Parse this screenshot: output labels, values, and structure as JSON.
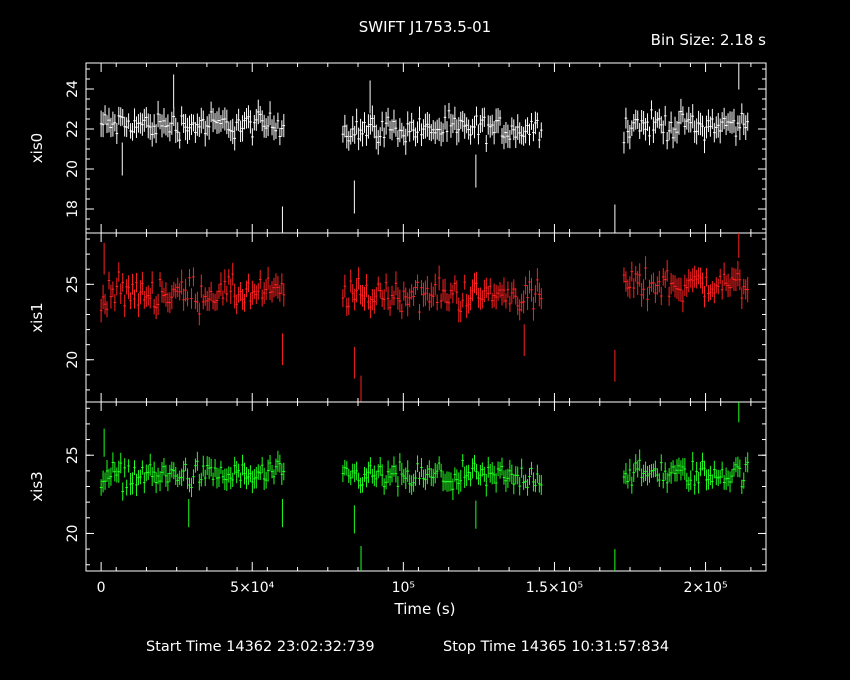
{
  "chart_data": {
    "type": "scatter",
    "title": "SWIFT J1753.5-01",
    "subtitle": "Bin Size: 2.18 s",
    "xlabel": "Time (s)",
    "xlim": [
      -5000,
      220000
    ],
    "x_ticks": [
      {
        "value": 0,
        "label": "0"
      },
      {
        "value": 50000,
        "label": "5×10⁴"
      },
      {
        "value": 100000,
        "label": "10⁵"
      },
      {
        "value": 150000,
        "label": "1.5×10⁵"
      },
      {
        "value": 200000,
        "label": "2×10⁵"
      }
    ],
    "grid": false,
    "series": [
      {
        "name": "xis0",
        "color": "#ffffff",
        "ylim": [
          16.8,
          25.3
        ],
        "y_ticks": [
          18,
          20,
          22,
          24
        ],
        "segments": [
          {
            "start": 0,
            "end": 61000,
            "baseline": 22.2,
            "amp": 0.55,
            "err": 0.55
          },
          {
            "start": 80000,
            "end": 146000,
            "baseline": 22.0,
            "amp": 0.55,
            "err": 0.55
          },
          {
            "start": 173000,
            "end": 214000,
            "baseline": 22.2,
            "amp": 0.55,
            "err": 0.55
          }
        ],
        "outliers": [
          [
            60000,
            17.3
          ],
          [
            83800,
            18.6
          ],
          [
            89000,
            23.6
          ],
          [
            170000,
            17.4
          ],
          [
            211000,
            24.8
          ],
          [
            7000,
            20.5
          ],
          [
            24000,
            23.9
          ],
          [
            124000,
            19.9
          ]
        ]
      },
      {
        "name": "xis1",
        "color": "#ff2020",
        "ylim": [
          17.2,
          28.4
        ],
        "y_ticks": [
          20,
          25
        ],
        "segments": [
          {
            "start": 0,
            "end": 61000,
            "baseline": 24.4,
            "amp": 0.9,
            "err": 0.7
          },
          {
            "start": 80000,
            "end": 146000,
            "baseline": 24.3,
            "amp": 0.9,
            "err": 0.7
          },
          {
            "start": 173000,
            "end": 214000,
            "baseline": 25.0,
            "amp": 0.9,
            "err": 0.7
          }
        ],
        "outliers": [
          [
            60000,
            20.7
          ],
          [
            83800,
            19.8
          ],
          [
            86000,
            17.9
          ],
          [
            140000,
            21.3
          ],
          [
            170000,
            19.6
          ],
          [
            211000,
            27.8
          ],
          [
            1000,
            26.7
          ]
        ]
      },
      {
        "name": "xis3",
        "color": "#20ff20",
        "ylim": [
          17.6,
          28.4
        ],
        "y_ticks": [
          20,
          25
        ],
        "segments": [
          {
            "start": 0,
            "end": 61000,
            "baseline": 23.7,
            "amp": 0.7,
            "err": 0.6
          },
          {
            "start": 80000,
            "end": 146000,
            "baseline": 23.6,
            "amp": 0.7,
            "err": 0.6
          },
          {
            "start": 173000,
            "end": 214000,
            "baseline": 23.8,
            "amp": 0.7,
            "err": 0.6
          }
        ],
        "outliers": [
          [
            60000,
            21.3
          ],
          [
            83800,
            20.9
          ],
          [
            86000,
            18.3
          ],
          [
            124000,
            21.2
          ],
          [
            170000,
            18.1
          ],
          [
            211000,
            28.0
          ],
          [
            1000,
            25.8
          ],
          [
            29000,
            21.3
          ]
        ]
      }
    ]
  },
  "footer": {
    "start_label": "Start Time 14362 23:02:32:739",
    "stop_label": "Stop Time 14365 10:31:57:834"
  }
}
